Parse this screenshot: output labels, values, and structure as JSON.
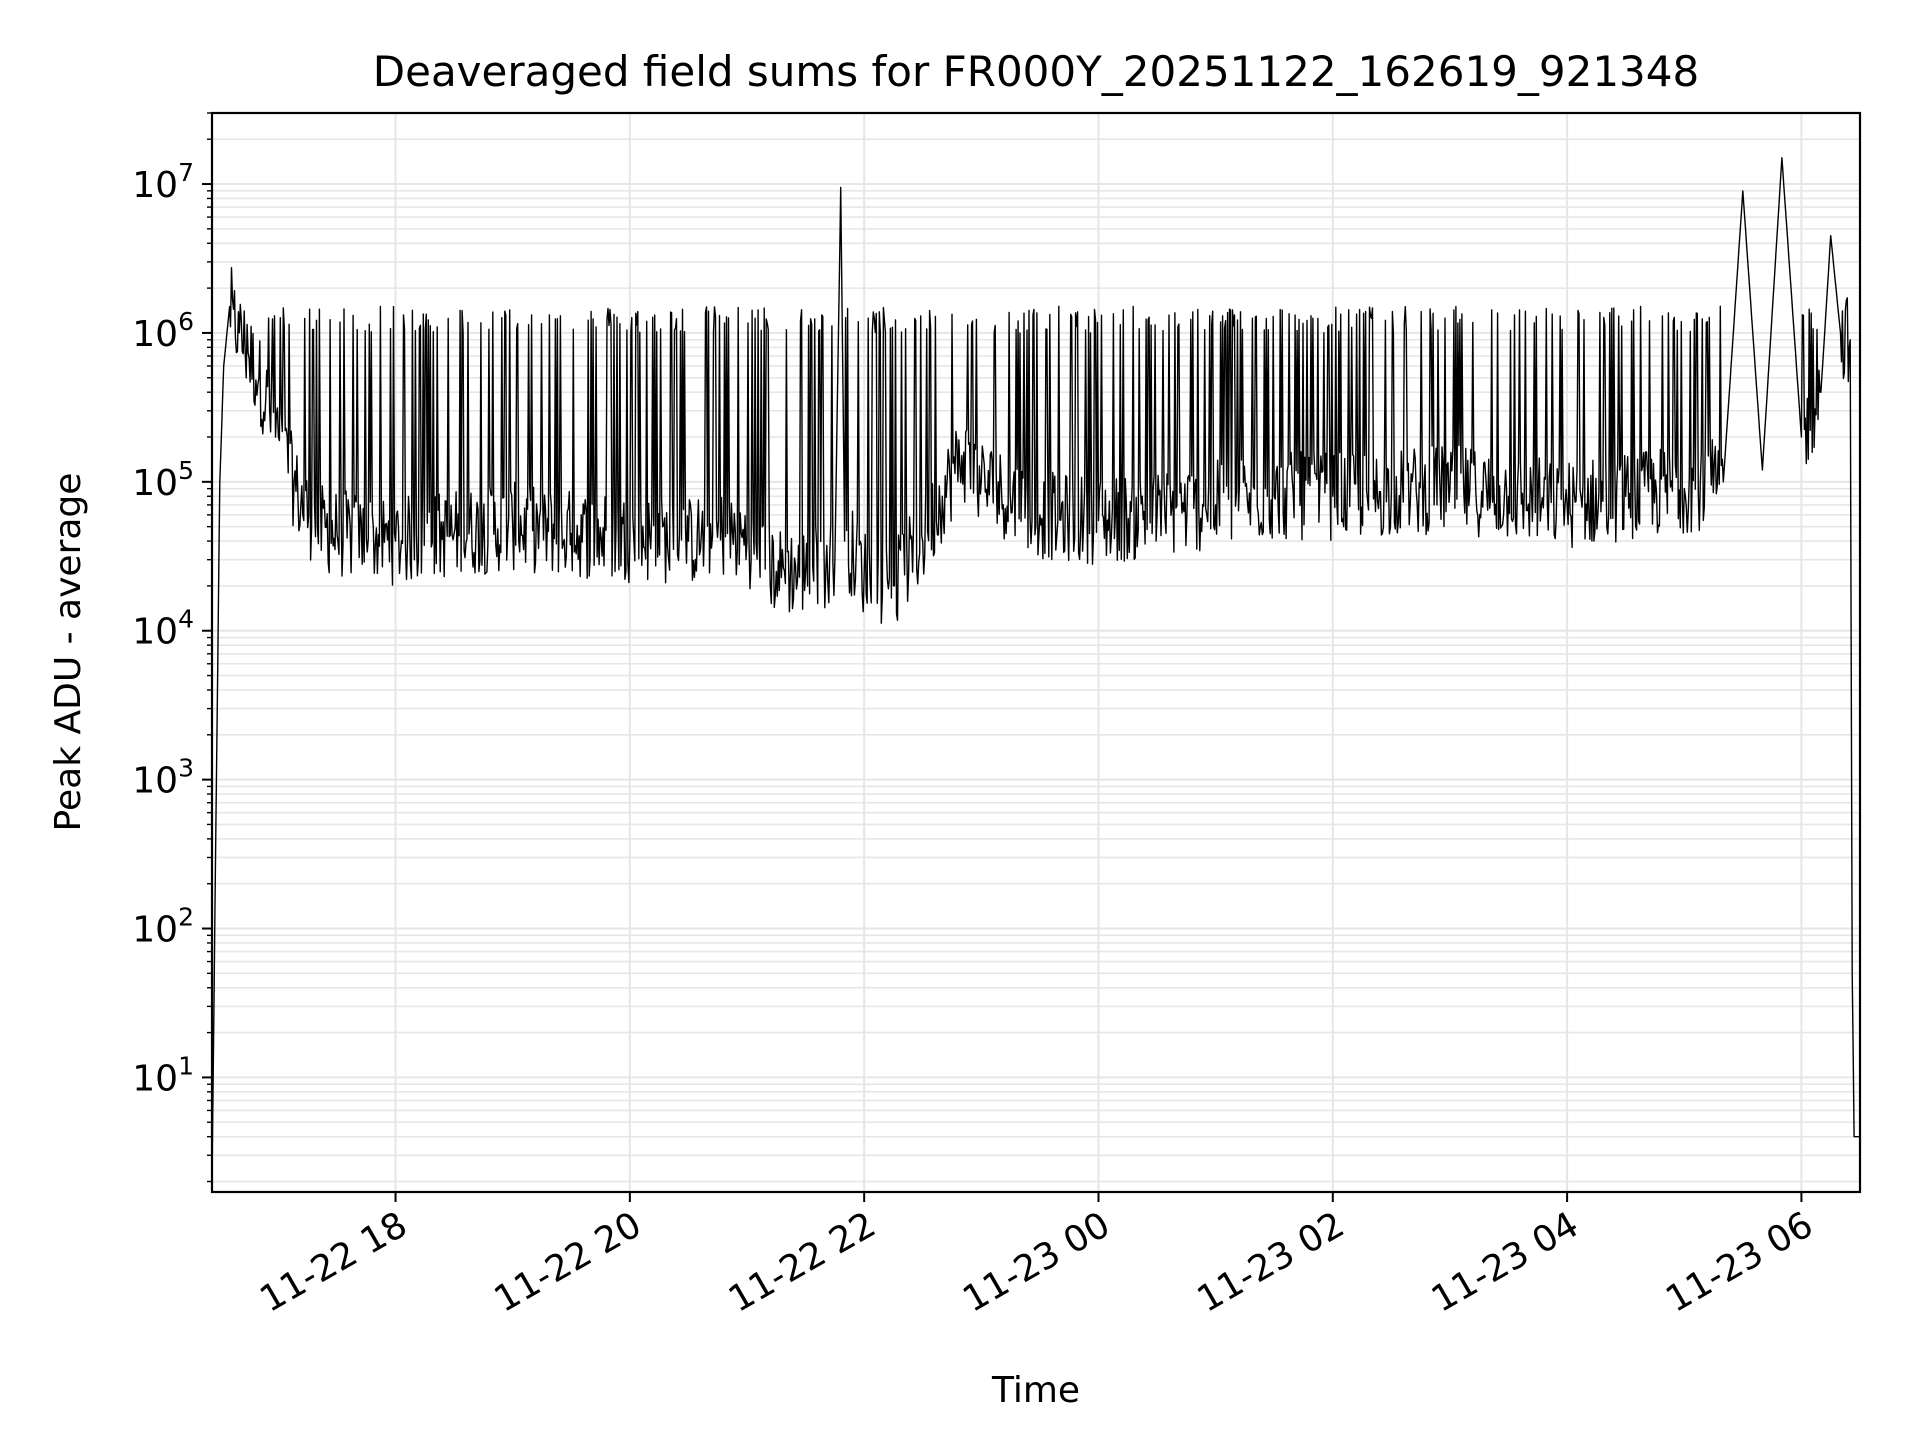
{
  "chart_data": {
    "type": "line",
    "title": "Deaveraged field sums for FR000Y_20251122_162619_921348",
    "xlabel": "Time",
    "ylabel": "Peak ADU - average",
    "yscale": "log",
    "ylim": [
      1.7,
      30000000
    ],
    "xlim": [
      "2025-11-22 16:26",
      "2025-11-23 06:30"
    ],
    "grid": true,
    "line_color": "#000000",
    "grid_color": "#e6e6e6",
    "x_ticks": [
      "2025-11-22 18:00",
      "2025-11-22 20:00",
      "2025-11-22 22:00",
      "2025-11-23 00:00",
      "2025-11-23 02:00",
      "2025-11-23 04:00",
      "2025-11-23 06:00"
    ],
    "x_tick_labels": [
      "11-22 18",
      "11-22 20",
      "11-22 22",
      "11-23 00",
      "11-23 02",
      "11-23 04",
      "11-23 06"
    ],
    "y_ticks": [
      10,
      100,
      1000,
      10000,
      100000,
      1000000,
      10000000
    ],
    "y_tick_bases": [
      "10",
      "10",
      "10",
      "10",
      "10",
      "10",
      "10"
    ],
    "y_tick_exponents": [
      "1",
      "2",
      "3",
      "4",
      "5",
      "6",
      "7"
    ],
    "series": [
      {
        "x": [
          "2025-11-22 16:26",
          "2025-11-22 16:28",
          "2025-11-22 16:30",
          "2025-11-22 16:32",
          "2025-11-22 16:35",
          "2025-11-22 16:40",
          "2025-11-22 16:50",
          "2025-11-22 17:00",
          "2025-11-22 17:10",
          "2025-11-22 17:20",
          "2025-11-22 17:30",
          "2025-11-22 17:45",
          "2025-11-22 18:00",
          "2025-11-22 18:30",
          "2025-11-22 19:00",
          "2025-11-22 19:30",
          "2025-11-22 20:00",
          "2025-11-22 20:30",
          "2025-11-22 20:50",
          "2025-11-22 21:00",
          "2025-11-22 21:15",
          "2025-11-22 21:30",
          "2025-11-22 21:45",
          "2025-11-22 21:48",
          "2025-11-22 21:50",
          "2025-11-22 22:00",
          "2025-11-22 22:15",
          "2025-11-22 22:30",
          "2025-11-22 22:40",
          "2025-11-22 22:50",
          "2025-11-22 23:00",
          "2025-11-22 23:30",
          "2025-11-23 00:00",
          "2025-11-23 00:30",
          "2025-11-23 01:00",
          "2025-11-23 01:30",
          "2025-11-23 02:00",
          "2025-11-23 02:30",
          "2025-11-23 03:00",
          "2025-11-23 03:30",
          "2025-11-23 04:00",
          "2025-11-23 04:30",
          "2025-11-23 05:00",
          "2025-11-23 05:20",
          "2025-11-23 05:30",
          "2025-11-23 05:40",
          "2025-11-23 05:50",
          "2025-11-23 06:00",
          "2025-11-23 06:10",
          "2025-11-23 06:15",
          "2025-11-23 06:20",
          "2025-11-23 06:25",
          "2025-11-23 06:26",
          "2025-11-23 06:27",
          "2025-11-23 06:28",
          "2025-11-23 06:30"
        ],
        "y": [
          2,
          500,
          100000,
          600000,
          1500000,
          1000000,
          500000,
          200000,
          80000,
          50000,
          45000,
          42000,
          40000,
          45000,
          50000,
          45000,
          42000,
          40000,
          45000,
          40000,
          25000,
          25000,
          30000,
          9500000,
          40000,
          25000,
          20000,
          40000,
          80000,
          150000,
          100000,
          60000,
          55000,
          60000,
          70000,
          80000,
          80000,
          85000,
          90000,
          80000,
          70000,
          80000,
          90000,
          100000,
          9000000,
          120000,
          15000000,
          200000,
          400000,
          4500000,
          1000000,
          900000,
          50,
          4,
          4,
          4
        ]
      }
    ]
  }
}
